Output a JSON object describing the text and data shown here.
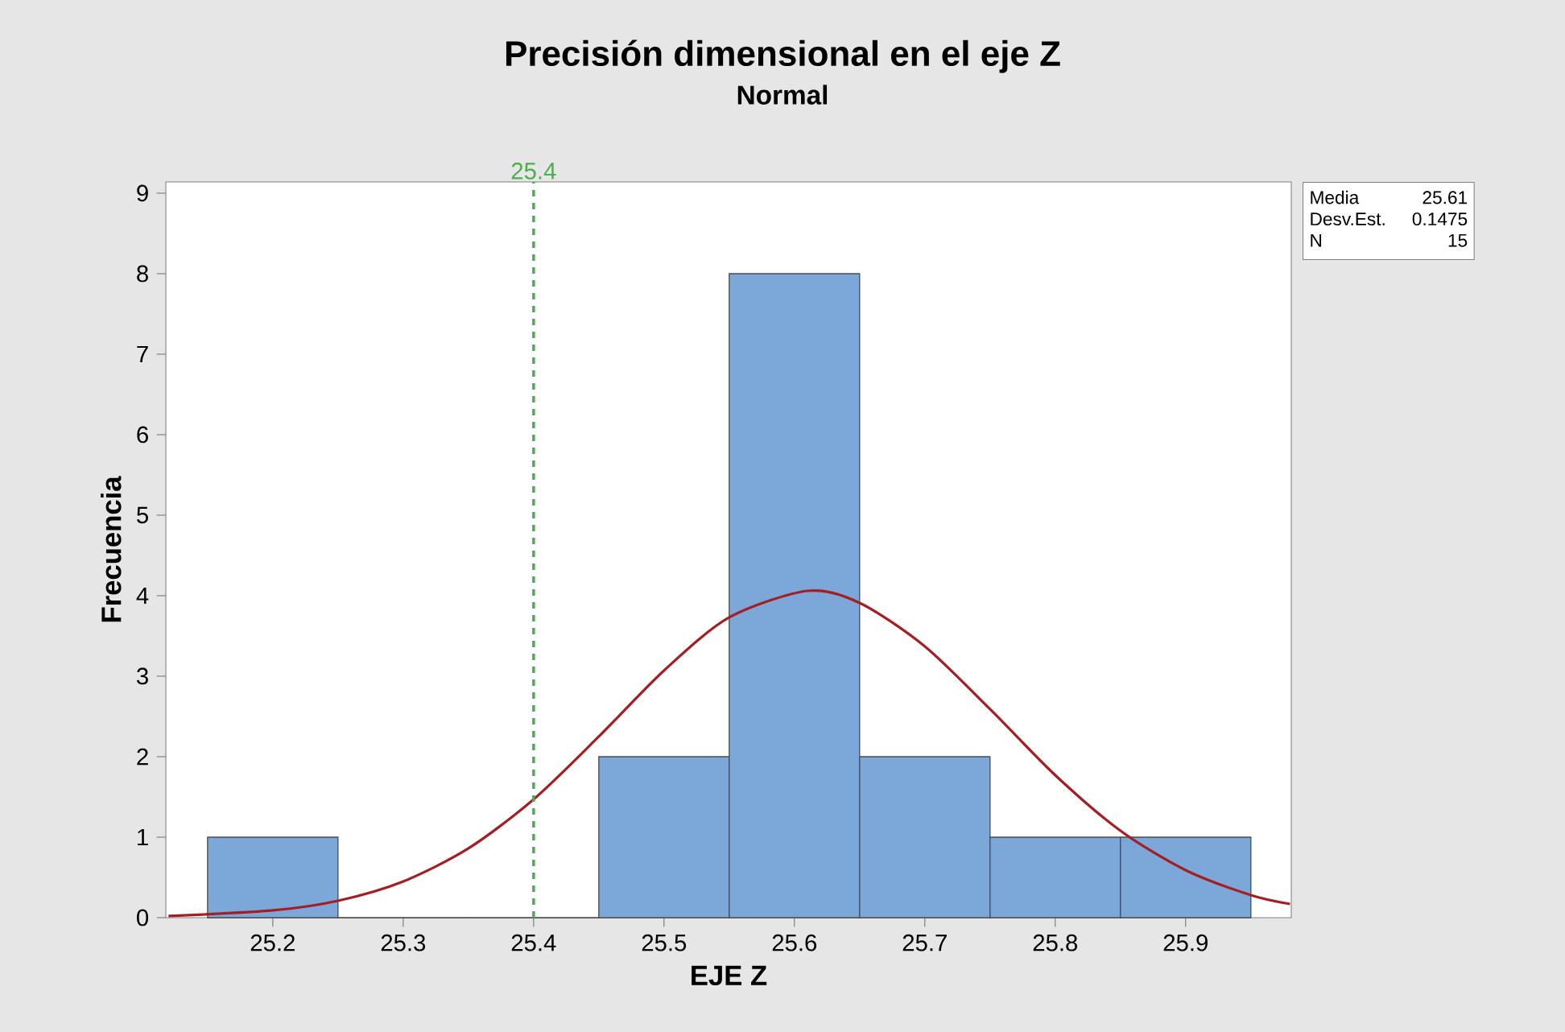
{
  "chart_data": {
    "type": "histogram",
    "title": "Precisión dimensional en el eje Z",
    "subtitle": "Normal",
    "xlabel": "EJE Z",
    "ylabel": "Frecuencia",
    "series": [
      {
        "color": "#7ba7d9",
        "bins": [
          25.15,
          25.25,
          25.35,
          25.45,
          25.55,
          25.65,
          25.75,
          25.85,
          25.95
        ],
        "values": [
          1,
          0,
          0,
          2,
          8,
          2,
          1,
          1
        ]
      },
      {
        "type": "line",
        "color": "#a31f24",
        "x": [
          25.12,
          25.2,
          25.25,
          25.3,
          25.35,
          25.4,
          25.45,
          25.5,
          25.55,
          25.61,
          25.65,
          25.7,
          25.75,
          25.8,
          25.85,
          25.9,
          25.95,
          25.98
        ],
        "values": [
          0.02,
          0.09,
          0.21,
          0.45,
          0.86,
          1.47,
          2.25,
          3.07,
          3.73,
          4.06,
          3.91,
          3.37,
          2.59,
          1.77,
          1.08,
          0.59,
          0.28,
          0.17
        ]
      }
    ],
    "xlim": [
      25.118,
      25.981
    ],
    "ylim": [
      0,
      9.14
    ],
    "xticks": [
      25.2,
      25.3,
      25.4,
      25.5,
      25.6,
      25.7,
      25.8,
      25.9
    ],
    "yticks": [
      0,
      1,
      2,
      3,
      4,
      5,
      6,
      7,
      8,
      9
    ],
    "ref_lines": [
      {
        "axis": "x",
        "value": 25.4,
        "label": "25.4",
        "color": "#4cae4c",
        "line_style": "dashed"
      }
    ],
    "annotations": [
      "Media",
      "25.61",
      "Desv.Est.",
      "0.1475",
      "N",
      "15"
    ],
    "grid": false
  }
}
